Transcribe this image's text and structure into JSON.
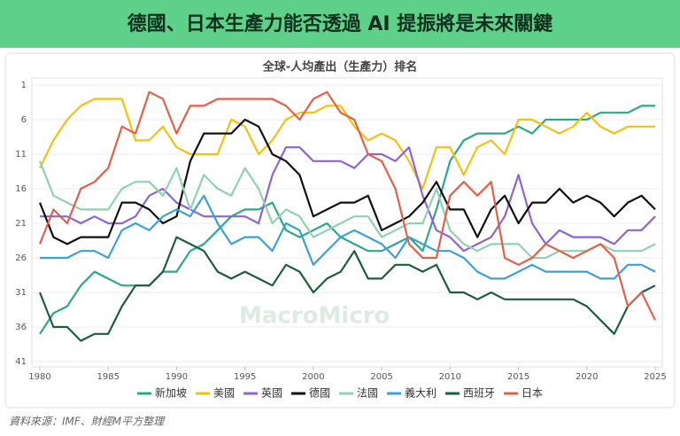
{
  "header": {
    "title": "德國、日本生產力能否透過 AI 提振將是未來關鍵"
  },
  "chart_data": {
    "type": "line",
    "title": "全球-人均產出（生產力）排名",
    "x": [
      1980,
      1981,
      1982,
      1983,
      1984,
      1985,
      1986,
      1987,
      1988,
      1989,
      1990,
      1991,
      1992,
      1993,
      1994,
      1995,
      1996,
      1997,
      1998,
      1999,
      2000,
      2001,
      2002,
      2003,
      2004,
      2005,
      2006,
      2007,
      2008,
      2009,
      2010,
      2011,
      2012,
      2013,
      2014,
      2015,
      2016,
      2017,
      2018,
      2019,
      2020,
      2021,
      2022,
      2023,
      2024,
      2025
    ],
    "xlim": [
      1980,
      2025
    ],
    "xticks": [
      1980,
      1985,
      1990,
      1995,
      2000,
      2005,
      2010,
      2015,
      2020,
      2025
    ],
    "ylim": [
      41,
      1
    ],
    "yticks": [
      1,
      6,
      11,
      16,
      21,
      26,
      31,
      36,
      41
    ],
    "grid": true,
    "series": [
      {
        "name": "新加坡",
        "color": "#2aa889",
        "values": [
          37,
          34,
          33,
          30,
          28,
          29,
          30,
          30,
          30,
          28,
          28,
          25,
          24,
          22,
          20,
          19,
          19,
          18,
          22,
          23,
          22,
          21,
          23,
          24,
          25,
          25,
          24,
          23,
          25,
          19,
          12,
          9,
          8,
          8,
          8,
          7,
          8,
          6,
          6,
          6,
          6,
          5,
          5,
          5,
          4,
          4
        ]
      },
      {
        "name": "美國",
        "color": "#f2c10f",
        "values": [
          13,
          9,
          6,
          4,
          3,
          3,
          3,
          9,
          9,
          7,
          10,
          11,
          11,
          11,
          6,
          7,
          11,
          9,
          6,
          5,
          5,
          4,
          4,
          7,
          9,
          8,
          9,
          12,
          16,
          10,
          10,
          14,
          10,
          9,
          11,
          6,
          6,
          7,
          8,
          7,
          5,
          7,
          8,
          7,
          7,
          7
        ]
      },
      {
        "name": "英國",
        "color": "#8b64d6",
        "values": [
          20,
          20,
          20,
          21,
          20,
          21,
          21,
          20,
          17,
          16,
          18,
          19,
          20,
          20,
          20,
          20,
          21,
          14,
          10,
          10,
          12,
          12,
          12,
          13,
          11,
          11,
          12,
          10,
          17,
          22,
          23,
          25,
          24,
          23,
          20,
          14,
          21,
          24,
          22,
          23,
          23,
          23,
          24,
          22,
          22,
          20
        ]
      },
      {
        "name": "德國",
        "color": "#111111",
        "values": [
          18,
          23,
          24,
          23,
          23,
          23,
          18,
          18,
          19,
          21,
          20,
          12,
          8,
          8,
          8,
          6,
          7,
          11,
          12,
          14,
          20,
          19,
          18,
          18,
          17,
          22,
          21,
          20,
          18,
          15,
          19,
          19,
          23,
          19,
          17,
          21,
          18,
          18,
          16,
          18,
          17,
          18,
          20,
          18,
          17,
          19
        ]
      },
      {
        "name": "法國",
        "color": "#8fd1b0",
        "values": [
          12,
          17,
          18,
          19,
          19,
          19,
          16,
          15,
          15,
          17,
          13,
          19,
          14,
          16,
          17,
          13,
          16,
          21,
          19,
          20,
          23,
          22,
          21,
          20,
          20,
          23,
          22,
          21,
          21,
          16,
          22,
          24,
          25,
          24,
          24,
          24,
          26,
          26,
          25,
          25,
          25,
          24,
          25,
          25,
          25,
          24
        ]
      },
      {
        "name": "義大利",
        "color": "#3ba0d8",
        "values": [
          26,
          26,
          26,
          25,
          25,
          26,
          22,
          21,
          22,
          20,
          19,
          20,
          17,
          21,
          24,
          23,
          23,
          25,
          21,
          22,
          27,
          25,
          23,
          22,
          23,
          24,
          26,
          23,
          24,
          25,
          25,
          26,
          28,
          29,
          29,
          28,
          27,
          28,
          28,
          28,
          28,
          29,
          29,
          27,
          27,
          28
        ]
      },
      {
        "name": "西班牙",
        "color": "#1c5e3c",
        "values": [
          31,
          36,
          36,
          38,
          37,
          37,
          33,
          30,
          30,
          28,
          23,
          24,
          25,
          28,
          29,
          28,
          29,
          30,
          27,
          28,
          31,
          29,
          28,
          25,
          29,
          29,
          27,
          27,
          28,
          27,
          31,
          31,
          32,
          31,
          32,
          32,
          32,
          32,
          32,
          32,
          33,
          35,
          37,
          33,
          31,
          30
        ]
      },
      {
        "name": "日本",
        "color": "#e0604a",
        "values": [
          24,
          19,
          21,
          16,
          15,
          13,
          7,
          8,
          2,
          3,
          8,
          4,
          4,
          3,
          3,
          3,
          3,
          3,
          4,
          6,
          3,
          2,
          5,
          6,
          11,
          12,
          16,
          24,
          26,
          26,
          17,
          15,
          17,
          15,
          26,
          27,
          26,
          24,
          25,
          26,
          25,
          24,
          26,
          33,
          31,
          35
        ]
      }
    ],
    "watermark": "MacroMicro"
  },
  "footer": {
    "source": "資料來源：IMF、財經M平方整理"
  }
}
